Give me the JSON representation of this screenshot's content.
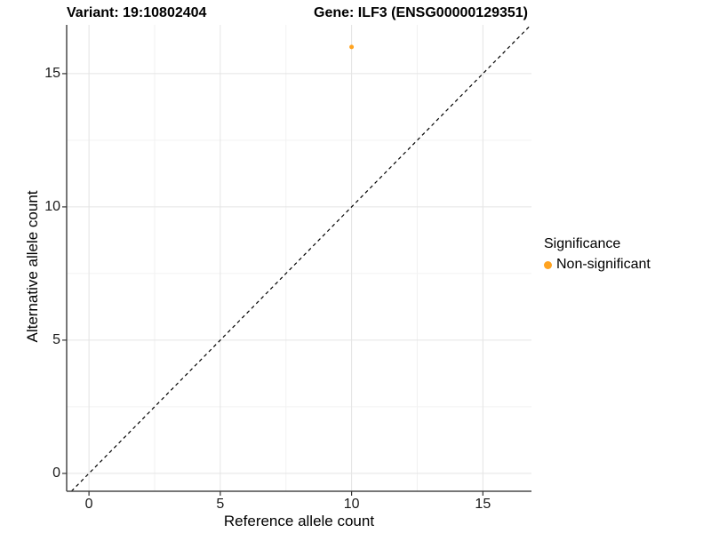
{
  "chart_data": {
    "type": "scatter",
    "title_left": "Variant: 19:10802404",
    "title_right": "Gene: ILF3 (ENSG00000129351)",
    "xlabel": "Reference allele count",
    "ylabel": "Alternative allele count",
    "xlim": [
      -0.85,
      16.85
    ],
    "ylim": [
      -0.67,
      16.83
    ],
    "x_ticks": [
      0,
      5,
      10,
      15
    ],
    "y_ticks": [
      0,
      5,
      10,
      15
    ],
    "x_minor_ticks": [
      2.5,
      7.5,
      12.5
    ],
    "y_minor_ticks": [
      2.5,
      7.5,
      12.5
    ],
    "grid": "on",
    "series": [
      {
        "name": "Non-significant",
        "color": "#FFA320",
        "points": [
          {
            "x": 10,
            "y": 16
          }
        ]
      }
    ],
    "reference_line": {
      "type": "identity",
      "style": "dashed",
      "color": "#000000"
    },
    "legend": {
      "title": "Significance",
      "position": "right",
      "items": [
        {
          "label": "Non-significant",
          "color": "#FFA320"
        }
      ]
    },
    "colors": {
      "grid_major": "#e4e4e4",
      "grid_minor": "#f2f2f2",
      "axis_line": "#4a4a4a",
      "tick_mark": "#333333"
    }
  }
}
